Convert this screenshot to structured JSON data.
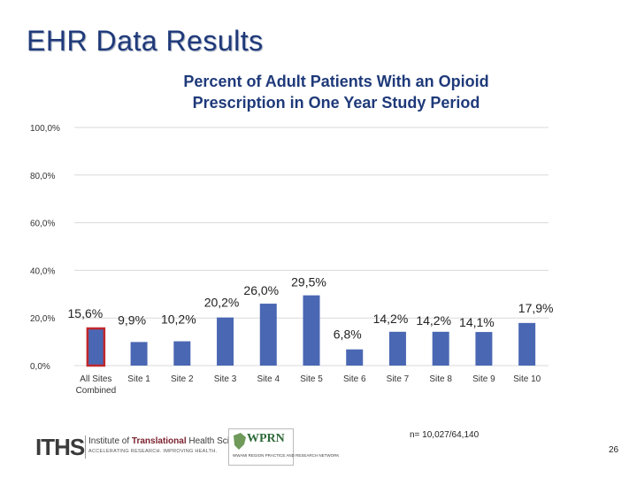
{
  "slide": {
    "title": "EHR Data Results",
    "footnote": "n= 10,027/64,140",
    "page_number": "26"
  },
  "logos": {
    "iths": {
      "mark": "ITHS",
      "name_plain_1": "Institute of ",
      "name_bold": "Translational",
      "name_plain_2": " Health Sciences",
      "tagline": "ACCELERATING RESEARCH. IMPROVING HEALTH."
    },
    "wprn": {
      "mark": "WPRN",
      "subtitle": "WWAMI REGION PRACTICE AND RESEARCH NETWORK"
    }
  },
  "chart_data": {
    "type": "bar",
    "title_line1": "Percent of Adult Patients With an Opioid",
    "title_line2": "Prescription in One Year Study Period",
    "categories": [
      "All Sites Combined",
      "Site 1",
      "Site 2",
      "Site 3",
      "Site 4",
      "Site 5",
      "Site 6",
      "Site 7",
      "Site 8",
      "Site 9",
      "Site 10"
    ],
    "category_lines": [
      [
        "All Sites",
        "Combined"
      ],
      [
        "Site 1"
      ],
      [
        "Site 2"
      ],
      [
        "Site 3"
      ],
      [
        "Site 4"
      ],
      [
        "Site 5"
      ],
      [
        "Site 6"
      ],
      [
        "Site 7"
      ],
      [
        "Site 8"
      ],
      [
        "Site 9"
      ],
      [
        "Site 10"
      ]
    ],
    "values": [
      15.6,
      9.9,
      10.2,
      20.2,
      26.0,
      29.5,
      6.8,
      14.2,
      14.2,
      14.1,
      17.9
    ],
    "data_labels": [
      "15,6%",
      "9,9%",
      "10,2%",
      "20,2%",
      "26,0%",
      "29,5%",
      "6,8%",
      "14,2%",
      "14,2%",
      "14,1%",
      "17,9%"
    ],
    "highlight_index": 0,
    "ylim": [
      0,
      100
    ],
    "yticks": [
      0,
      20,
      40,
      60,
      80,
      100
    ],
    "ytick_labels": [
      "0,0%",
      "20,0%",
      "40,0%",
      "60,0%",
      "80,0%",
      "100,0%"
    ],
    "xlabel": "",
    "ylabel": "",
    "grid": true,
    "colors": {
      "bar": "#4a67b3",
      "highlight_border": "#c0282d",
      "grid": "#d9d9d9"
    }
  }
}
